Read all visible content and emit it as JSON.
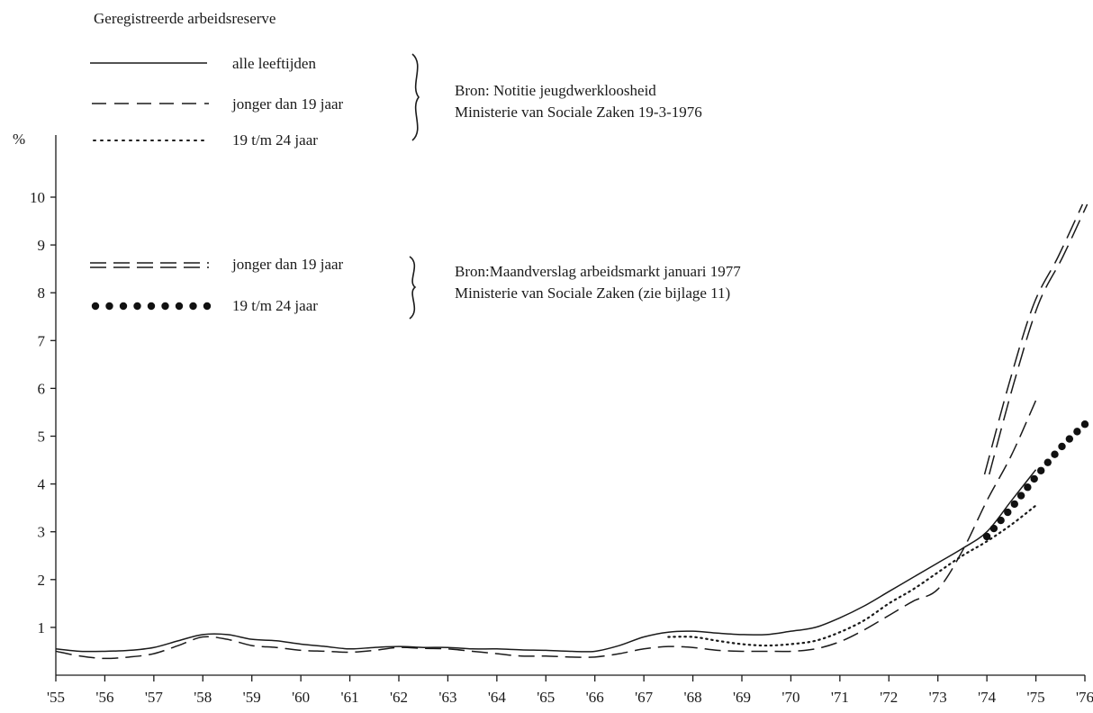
{
  "chart_data": {
    "type": "line",
    "title": "Geregistreerde arbeidsreserve",
    "ylabel": "%",
    "xlabel": "",
    "ylim": [
      0,
      10.5
    ],
    "xlim": [
      1955,
      1976
    ],
    "x_ticks": [
      "'55",
      "'56",
      "'57",
      "'58",
      "'59",
      "'60",
      "'61",
      "'62",
      "'63",
      "'64",
      "'65",
      "'66",
      "'67",
      "'68",
      "'69",
      "'70",
      "'71",
      "'72",
      "'73",
      "'74",
      "'75",
      "'76"
    ],
    "y_ticks": [
      "1",
      "2",
      "3",
      "4",
      "5",
      "6",
      "7",
      "8",
      "9",
      "10"
    ],
    "grid": false,
    "legend_groups": [
      {
        "source_lines": [
          "Bron: Notitie jeugdwerkloosheid",
          "Ministerie van Sociale Zaken 19-3-1976"
        ],
        "entries": [
          {
            "label": "alle leeftijden",
            "style": "solid"
          },
          {
            "label": "jonger dan 19 jaar",
            "style": "dashed"
          },
          {
            "label": "19 t/m 24 jaar",
            "style": "dotted"
          }
        ]
      },
      {
        "source_lines": [
          "Bron:Maandverslag arbeidsmarkt januari 1977",
          "Ministerie van Sociale Zaken (zie bijlage 11)"
        ],
        "entries": [
          {
            "label": "jonger dan 19 jaar",
            "style": "double-dashed"
          },
          {
            "label": "19 t/m 24 jaar",
            "style": "heavy-dots"
          }
        ]
      }
    ],
    "series": [
      {
        "name": "alle leeftijden",
        "style": "solid",
        "x": [
          1955,
          1955.5,
          1956,
          1956.5,
          1957,
          1957.5,
          1958,
          1958.5,
          1959,
          1959.5,
          1960,
          1960.5,
          1961,
          1961.5,
          1962,
          1962.5,
          1963,
          1963.5,
          1964,
          1964.5,
          1965,
          1965.5,
          1966,
          1966.5,
          1967,
          1967.5,
          1968,
          1968.5,
          1969,
          1969.5,
          1970,
          1970.5,
          1971,
          1971.5,
          1972,
          1972.5,
          1973,
          1973.5,
          1974,
          1974.5,
          1975
        ],
        "y": [
          0.55,
          0.5,
          0.5,
          0.52,
          0.58,
          0.72,
          0.85,
          0.85,
          0.75,
          0.72,
          0.65,
          0.6,
          0.55,
          0.58,
          0.6,
          0.58,
          0.58,
          0.55,
          0.55,
          0.53,
          0.52,
          0.5,
          0.5,
          0.62,
          0.8,
          0.9,
          0.92,
          0.88,
          0.85,
          0.85,
          0.92,
          1.0,
          1.2,
          1.45,
          1.75,
          2.05,
          2.35,
          2.65,
          3.0,
          3.65,
          4.3
        ]
      },
      {
        "name": "jonger dan 19 jaar",
        "style": "dashed",
        "x": [
          1955,
          1955.5,
          1956,
          1956.5,
          1957,
          1957.5,
          1958,
          1958.5,
          1959,
          1959.5,
          1960,
          1960.5,
          1961,
          1961.5,
          1962,
          1962.5,
          1963,
          1963.5,
          1964,
          1964.5,
          1965,
          1965.5,
          1966,
          1966.5,
          1967,
          1967.5,
          1968,
          1968.5,
          1969,
          1969.5,
          1970,
          1970.5,
          1971,
          1971.5,
          1972,
          1972.5,
          1973,
          1973.5,
          1974,
          1974.5,
          1975
        ],
        "y": [
          0.5,
          0.4,
          0.35,
          0.38,
          0.45,
          0.62,
          0.8,
          0.75,
          0.62,
          0.58,
          0.52,
          0.5,
          0.48,
          0.52,
          0.58,
          0.56,
          0.55,
          0.5,
          0.45,
          0.4,
          0.4,
          0.38,
          0.38,
          0.45,
          0.55,
          0.6,
          0.58,
          0.52,
          0.5,
          0.5,
          0.5,
          0.55,
          0.7,
          0.95,
          1.25,
          1.55,
          1.8,
          2.6,
          3.65,
          4.6,
          5.75
        ]
      },
      {
        "name": "19 t/m 24 jaar",
        "style": "dotted",
        "x": [
          1967.5,
          1968,
          1968.5,
          1969,
          1969.5,
          1970,
          1970.5,
          1971,
          1971.5,
          1972,
          1972.5,
          1973,
          1973.5,
          1974,
          1974.5,
          1975
        ],
        "y": [
          0.8,
          0.8,
          0.72,
          0.65,
          0.62,
          0.65,
          0.72,
          0.9,
          1.15,
          1.5,
          1.8,
          2.15,
          2.5,
          2.8,
          3.15,
          3.55
        ]
      },
      {
        "name": "jonger dan 19 jaar",
        "style": "double-dashed",
        "x": [
          1974,
          1974.5,
          1975,
          1975.5,
          1976
        ],
        "y": [
          4.2,
          6.1,
          7.75,
          8.75,
          9.85
        ]
      },
      {
        "name": "19 t/m 24 jaar",
        "style": "heavy-dots",
        "x": [
          1974,
          1974.5,
          1975,
          1975.5,
          1976
        ],
        "y": [
          2.9,
          3.5,
          4.15,
          4.75,
          5.25
        ]
      }
    ]
  }
}
